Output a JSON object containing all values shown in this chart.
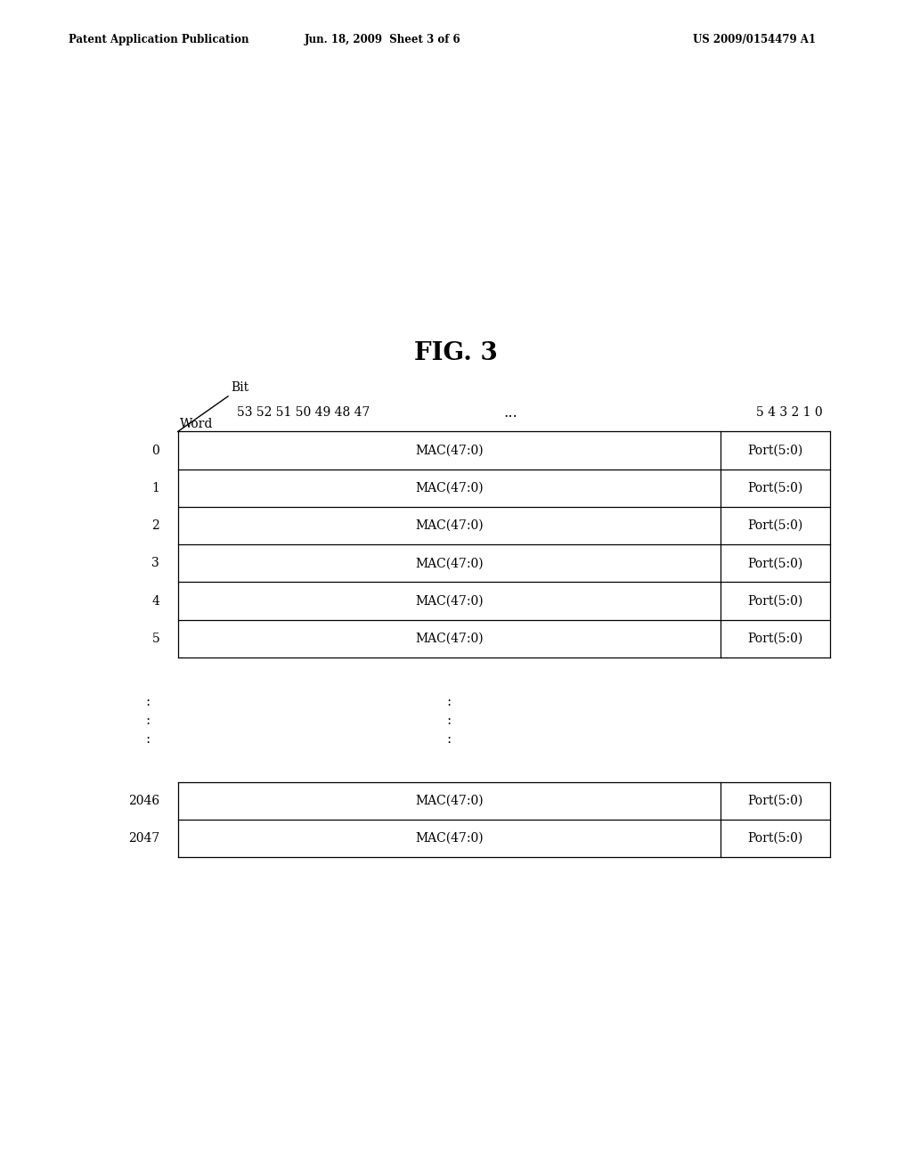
{
  "title": "FIG. 3",
  "header_left": "Patent Application Publication",
  "header_mid": "Jun. 18, 2009  Sheet 3 of 6",
  "header_right": "US 2009/0154479 A1",
  "bit_label": "Bit",
  "word_label": "Word",
  "bit_numbers_left": "53 52 51 50 49 48 47",
  "bit_dots": "...",
  "bit_numbers_right": "5 4 3 2 1 0",
  "rows_top": [
    "0",
    "1",
    "2",
    "3",
    "4",
    "5"
  ],
  "rows_bottom": [
    "2046",
    "2047"
  ],
  "mac_label": "MAC(47:0)",
  "port_label": "Port(5:0)",
  "background_color": "#ffffff",
  "text_color": "#000000",
  "line_color": "#000000"
}
